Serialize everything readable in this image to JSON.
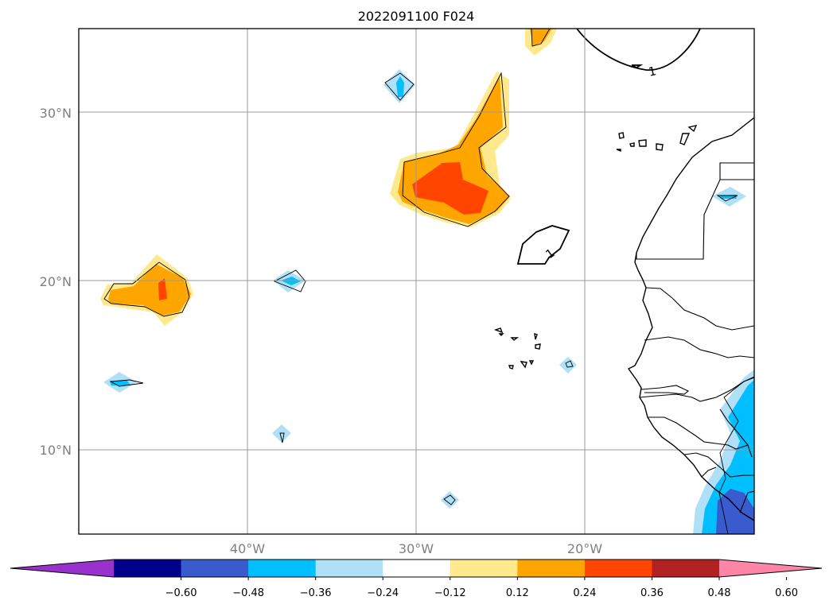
{
  "title": "2022091100 F024",
  "axes": {
    "lon_labels": [
      "40°W",
      "30°W",
      "20°W"
    ],
    "lat_labels": [
      "30°N",
      "20°N",
      "10°N"
    ]
  },
  "colorbar": {
    "colors": [
      "#9932CC",
      "#00008B",
      "#3A5BCD",
      "#00BFFF",
      "#AFE0F7",
      "#FFFFFF",
      "#FFE98C",
      "#FFA500",
      "#FF4500",
      "#B22222",
      "#FF85A8"
    ],
    "ticks": [
      "−0.60",
      "−0.48",
      "−0.36",
      "−0.24",
      "−0.12",
      "0.12",
      "0.24",
      "0.36",
      "0.48",
      "0.60"
    ]
  },
  "contour_labels": [
    "1",
    "1"
  ]
}
